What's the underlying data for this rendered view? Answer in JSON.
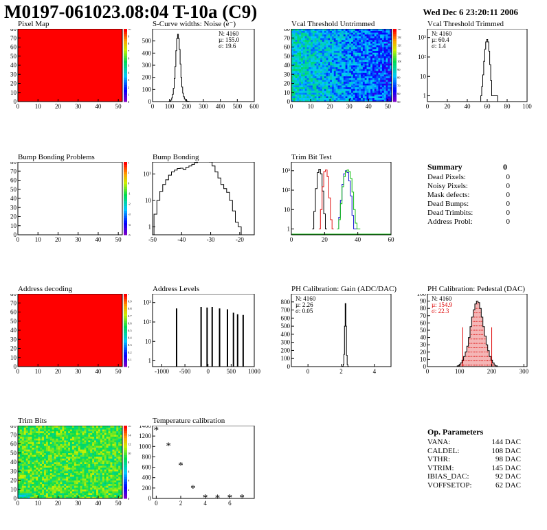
{
  "header": {
    "title": "M0197-061023.08:04 T-10a (C9)",
    "date": "Wed Dec  6 23:20:11 2006"
  },
  "summary": {
    "title": "Summary",
    "total": "0",
    "rows": [
      {
        "label": "Dead Pixels:",
        "value": "0"
      },
      {
        "label": "Noisy Pixels:",
        "value": "0"
      },
      {
        "label": "Mask defects:",
        "value": "0"
      },
      {
        "label": "Dead Bumps:",
        "value": "0"
      },
      {
        "label": "Dead Trimbits:",
        "value": "0"
      },
      {
        "label": "Address Probl:",
        "value": "0"
      }
    ]
  },
  "op_params": {
    "title": "Op. Parameters",
    "rows": [
      {
        "label": "VANA:",
        "value": "144 DAC"
      },
      {
        "label": "CALDEL:",
        "value": "108 DAC"
      },
      {
        "label": "VTHR:",
        "value": "98 DAC"
      },
      {
        "label": "VTRIM:",
        "value": "145 DAC"
      },
      {
        "label": "IBIAS_DAC:",
        "value": "92 DAC"
      },
      {
        "label": "VOFFSETOP:",
        "value": "62 DAC"
      }
    ]
  },
  "colors": {
    "red_map": "#ff0000",
    "trim_red": "#e01010",
    "trim_green": "#10c010",
    "trim_blue": "#1010d0",
    "pedestal_red": "#dd0000"
  },
  "chart_data": [
    {
      "id": "pixel-map",
      "type": "heatmap",
      "title": "Pixel Map",
      "xlim": [
        0,
        52
      ],
      "ylim": [
        0,
        80
      ],
      "xticks": [
        "0",
        "10",
        "20",
        "30",
        "40",
        "50"
      ],
      "yticks": [
        "0",
        "10",
        "20",
        "30",
        "40",
        "50",
        "60",
        "70",
        "80"
      ],
      "fill": "uniform",
      "value": 10,
      "zlim": [
        0,
        10
      ],
      "zticks": [
        "0",
        "1",
        "2",
        "3",
        "4",
        "5",
        "6",
        "7",
        "8",
        "9",
        "10"
      ]
    },
    {
      "id": "scurve",
      "type": "histogram",
      "title": "S-Curve widths: Noise (e⁻)",
      "xlim": [
        0,
        600
      ],
      "ylim": [
        0,
        600
      ],
      "xticks": [
        "0",
        "100",
        "200",
        "300",
        "400",
        "500",
        "600"
      ],
      "yticks": [
        "0",
        "100",
        "200",
        "300",
        "400",
        "500"
      ],
      "stats": [
        "N: 4160",
        "µ: 155.0",
        "σ: 19.6"
      ],
      "bins_x": [
        100,
        105,
        110,
        115,
        120,
        125,
        130,
        135,
        140,
        145,
        150,
        155,
        160,
        165,
        170,
        175,
        180,
        185,
        190,
        195,
        200,
        205,
        210,
        215,
        220
      ],
      "bins_y": [
        2,
        5,
        12,
        30,
        60,
        110,
        190,
        290,
        420,
        520,
        555,
        520,
        430,
        310,
        200,
        120,
        70,
        40,
        22,
        12,
        6,
        3,
        2,
        1,
        0
      ]
    },
    {
      "id": "vcal-untrimmed",
      "type": "heatmap",
      "title": "Vcal Threshold Untrimmed",
      "xlim": [
        0,
        52
      ],
      "ylim": [
        0,
        80
      ],
      "xticks": [
        "0",
        "10",
        "20",
        "30",
        "40",
        "50"
      ],
      "yticks": [
        "0",
        "10",
        "20",
        "30",
        "40",
        "50",
        "60",
        "70",
        "80"
      ],
      "fill": "noisy-gradient",
      "zticks": [
        "50",
        "60",
        "70",
        "80",
        "90",
        "100",
        "110",
        "120",
        "130",
        "140"
      ]
    },
    {
      "id": "vcal-trimmed",
      "type": "histogram",
      "title": "Vcal Threshold Trimmed",
      "xlim": [
        0,
        100
      ],
      "log_y": true,
      "xticks": [
        "0",
        "20",
        "40",
        "60",
        "80",
        "100"
      ],
      "yticks": [
        "1",
        "10",
        "10²",
        "10³"
      ],
      "stats": [
        "N: 4160",
        "µ: 60.4",
        "σ: 1.4"
      ],
      "bins_x": [
        54,
        55,
        56,
        57,
        58,
        59,
        60,
        61,
        62,
        63,
        64,
        65,
        70
      ],
      "bins_y": [
        1,
        3,
        12,
        60,
        250,
        600,
        800,
        600,
        200,
        40,
        6,
        1,
        1
      ]
    },
    {
      "id": "bump-problems",
      "type": "heatmap",
      "title": "Bump Bonding Problems",
      "xlim": [
        0,
        52
      ],
      "ylim": [
        0,
        80
      ],
      "xticks": [
        "0",
        "10",
        "20",
        "30",
        "40",
        "50"
      ],
      "yticks": [
        "0",
        "10",
        "20",
        "30",
        "40",
        "50",
        "60",
        "70",
        "80"
      ],
      "fill": "empty",
      "zticks": [
        "-5",
        "-4",
        "-3",
        "-2",
        "-1",
        "0",
        "1",
        "2"
      ]
    },
    {
      "id": "bump-bonding",
      "type": "histogram",
      "title": "Bump Bonding",
      "xlim": [
        -50,
        -15
      ],
      "log_y": true,
      "xticks": [
        "-50",
        "-40",
        "-30",
        "-20"
      ],
      "yticks": [
        "1",
        "10",
        "10²"
      ],
      "bins_x": [
        -49,
        -48,
        -47,
        -46,
        -45,
        -44,
        -43,
        -42,
        -41,
        -40,
        -39,
        -38,
        -37,
        -36,
        -35,
        -34,
        -33,
        -32,
        -31,
        -30,
        -29,
        -28,
        -27,
        -26,
        -25,
        -24,
        -23,
        -22,
        -21,
        -20,
        -19
      ],
      "bins_y": [
        3,
        10,
        22,
        40,
        60,
        90,
        120,
        140,
        160,
        165,
        150,
        180,
        200,
        230,
        270,
        310,
        350,
        380,
        330,
        280,
        200,
        120,
        70,
        40,
        28,
        20,
        10,
        4,
        1.5,
        1,
        0
      ]
    },
    {
      "id": "trim-bit-test",
      "type": "line",
      "title": "Trim Bit Test",
      "xlim": [
        0,
        60
      ],
      "log_y": true,
      "xticks": [
        "0",
        "20",
        "40",
        "60"
      ],
      "yticks": [
        "1",
        "10",
        "10²",
        "10³"
      ],
      "series": [
        {
          "color": "black",
          "x": [
            13,
            14,
            15,
            16,
            17,
            18,
            19,
            20,
            21
          ],
          "y": [
            1,
            8,
            120,
            800,
            1200,
            700,
            90,
            6,
            1
          ]
        },
        {
          "color": "red",
          "x": [
            17,
            18,
            19,
            20,
            21,
            22,
            23,
            24,
            25
          ],
          "y": [
            1,
            10,
            150,
            900,
            1100,
            500,
            40,
            3,
            1
          ]
        },
        {
          "color": "blue",
          "x": [
            28,
            29,
            30,
            31,
            32,
            33,
            34,
            35,
            36,
            37,
            38,
            39
          ],
          "y": [
            1,
            4,
            30,
            200,
            700,
            1000,
            800,
            300,
            50,
            5,
            1,
            1
          ]
        },
        {
          "color": "green",
          "x": [
            28,
            29,
            30,
            31,
            32,
            33,
            34,
            35,
            36,
            37,
            38,
            39,
            40,
            41
          ],
          "y": [
            1,
            3,
            20,
            150,
            500,
            900,
            1100,
            900,
            400,
            80,
            10,
            2,
            1,
            1
          ]
        }
      ]
    },
    {
      "id": "address-decoding",
      "type": "heatmap",
      "title": "Address decoding",
      "xlim": [
        0,
        52
      ],
      "ylim": [
        0,
        80
      ],
      "xticks": [
        "0",
        "10",
        "20",
        "30",
        "40",
        "50"
      ],
      "yticks": [
        "0",
        "10",
        "20",
        "30",
        "40",
        "50",
        "60",
        "70",
        "80"
      ],
      "fill": "uniform",
      "value": 1,
      "zlim": [
        0,
        1
      ],
      "zticks": [
        "0",
        "0.1",
        "0.2",
        "0.3",
        "0.4",
        "0.5",
        "0.6",
        "0.7",
        "0.8",
        "0.9",
        "1"
      ]
    },
    {
      "id": "address-levels",
      "type": "histogram",
      "title": "Address Levels",
      "xlim": [
        -1200,
        1000
      ],
      "log_y": true,
      "xticks": [
        "-1000",
        "-500",
        "0",
        "500",
        "1000"
      ],
      "yticks": [
        "1",
        "10",
        "10²",
        "10³"
      ],
      "peaks_x": [
        -680,
        -150,
        -20,
        90,
        250,
        420,
        550,
        640,
        760
      ],
      "peaks_y": [
        500,
        600,
        550,
        600,
        500,
        450,
        300,
        250,
        230
      ]
    },
    {
      "id": "ph-gain",
      "type": "histogram",
      "title": "PH Calibration: Gain (ADC/DAC)",
      "xlim": [
        -1,
        5
      ],
      "ylim": [
        0,
        900
      ],
      "xticks": [
        "0",
        "2",
        "4"
      ],
      "yticks": [
        "0",
        "100",
        "200",
        "300",
        "400",
        "500",
        "600",
        "700",
        "800"
      ],
      "stats": [
        "N: 4160",
        "µ: 2.26",
        "σ: 0.05"
      ],
      "bins_x": [
        2.1,
        2.14,
        2.18,
        2.22,
        2.26,
        2.3,
        2.34,
        2.38,
        2.42
      ],
      "bins_y": [
        5,
        30,
        150,
        500,
        780,
        500,
        140,
        25,
        3
      ]
    },
    {
      "id": "ph-pedestal",
      "type": "histogram",
      "title": "PH Calibration: Pedestal (DAC)",
      "xlim": [
        0,
        310
      ],
      "ylim": [
        0,
        100
      ],
      "xticks": [
        "0",
        "100",
        "200",
        "300"
      ],
      "yticks": [
        "0",
        "10",
        "20",
        "30",
        "40",
        "50",
        "60",
        "70",
        "80",
        "90",
        "100"
      ],
      "stats": [
        "N: 4160",
        "µ: 154.9",
        "σ: 22.3"
      ],
      "cut_lines": [
        110,
        200
      ],
      "bins_x": [
        95,
        100,
        105,
        110,
        115,
        120,
        125,
        130,
        135,
        140,
        145,
        150,
        155,
        160,
        165,
        170,
        175,
        180,
        185,
        190,
        195,
        200,
        205,
        210,
        215
      ],
      "bins_y": [
        1,
        2,
        5,
        9,
        14,
        20,
        28,
        40,
        55,
        68,
        78,
        86,
        90,
        88,
        80,
        68,
        55,
        42,
        30,
        22,
        14,
        9,
        5,
        2,
        1
      ]
    },
    {
      "id": "trim-bits",
      "type": "heatmap",
      "title": "Trim Bits",
      "xlim": [
        0,
        52
      ],
      "ylim": [
        0,
        80
      ],
      "xticks": [
        "0",
        "10",
        "20",
        "30",
        "40",
        "50"
      ],
      "yticks": [
        "0",
        "10",
        "20",
        "30",
        "40",
        "50",
        "60",
        "70",
        "80"
      ],
      "fill": "noisy-green",
      "zticks": [
        "0",
        "2",
        "4",
        "6",
        "8",
        "10",
        "12",
        "14",
        "16"
      ]
    },
    {
      "id": "temp-cal",
      "type": "scatter",
      "title": "Temperature calibration",
      "xlim": [
        -0.3,
        8
      ],
      "ylim": [
        0,
        1400
      ],
      "xticks": [
        "0",
        "2",
        "4",
        "6"
      ],
      "yticks": [
        "0",
        "200",
        "400",
        "600",
        "800",
        "1000",
        "1200",
        "1400"
      ],
      "x": [
        0,
        1,
        2,
        3,
        4,
        5,
        6,
        7
      ],
      "y": [
        1320,
        1020,
        640,
        200,
        20,
        10,
        20,
        20
      ]
    }
  ]
}
